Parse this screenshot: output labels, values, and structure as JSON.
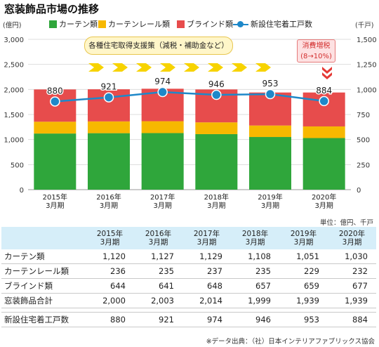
{
  "title": "窓装飾品市場の推移",
  "colors": {
    "curtain": "#2fa63b",
    "rail": "#f7b800",
    "blind": "#e74c4c",
    "starts": "#1e88c9",
    "table_header": "#d6eef9"
  },
  "legend": {
    "curtain": "カーテン類",
    "rail": "カーテンレール類",
    "blind": "ブラインド類",
    "starts": "新設住宅着工戸数"
  },
  "unit_left": "(億円)",
  "unit_right": "(千戸)",
  "policy_label": "各種住宅取得支援策（減税・補助金など）",
  "tax_label_line1": "消費増税",
  "tax_label_line2": "(8→10%)",
  "table_unit": "単位：億円、千戸",
  "source": "※データ出典：（社）日本インテリアファブリックス協会",
  "chart_data": {
    "type": "bar",
    "stacked": true,
    "categories": [
      "2015年\n3月期",
      "2016年\n3月期",
      "2017年\n3月期",
      "2018年\n3月期",
      "2019年\n3月期",
      "2020年\n3月期"
    ],
    "series": [
      {
        "name": "カーテン類",
        "values": [
          1120,
          1127,
          1129,
          1108,
          1051,
          1030
        ]
      },
      {
        "name": "カーテンレール類",
        "values": [
          236,
          235,
          237,
          235,
          229,
          232
        ]
      },
      {
        "name": "ブラインド類",
        "values": [
          644,
          641,
          648,
          657,
          659,
          677
        ]
      }
    ],
    "line_series": {
      "name": "新設住宅着工戸数",
      "axis": "right",
      "values": [
        880,
        921,
        974,
        946,
        953,
        884
      ]
    },
    "ylim": [
      0,
      3000
    ],
    "yticks": [
      "0",
      "500",
      "1,000",
      "1,500",
      "2,000",
      "2,500",
      "3,000"
    ],
    "y2lim": [
      0,
      1500
    ],
    "y2ticks": [
      "0",
      "250",
      "500",
      "750",
      "1,000",
      "1,250",
      "1,500"
    ]
  },
  "table": {
    "headers": [
      [
        "2015年",
        "3月期"
      ],
      [
        "2016年",
        "3月期"
      ],
      [
        "2017年",
        "3月期"
      ],
      [
        "2018年",
        "3月期"
      ],
      [
        "2019年",
        "3月期"
      ],
      [
        "2020年",
        "3月期"
      ]
    ],
    "rows": [
      {
        "label": "カーテン類",
        "values": [
          "1,120",
          "1,127",
          "1,129",
          "1,108",
          "1,051",
          "1,030"
        ]
      },
      {
        "label": "カーテンレール類",
        "values": [
          "236",
          "235",
          "237",
          "235",
          "229",
          "232"
        ]
      },
      {
        "label": "ブラインド類",
        "values": [
          "644",
          "641",
          "648",
          "657",
          "659",
          "677"
        ]
      },
      {
        "label": "窓装飾品合計",
        "values": [
          "2,000",
          "2,003",
          "2,014",
          "1,999",
          "1,939",
          "1,939"
        ]
      }
    ],
    "total_row": {
      "label": "新設住宅着工戸数",
      "values": [
        "880",
        "921",
        "974",
        "946",
        "953",
        "884"
      ]
    }
  }
}
